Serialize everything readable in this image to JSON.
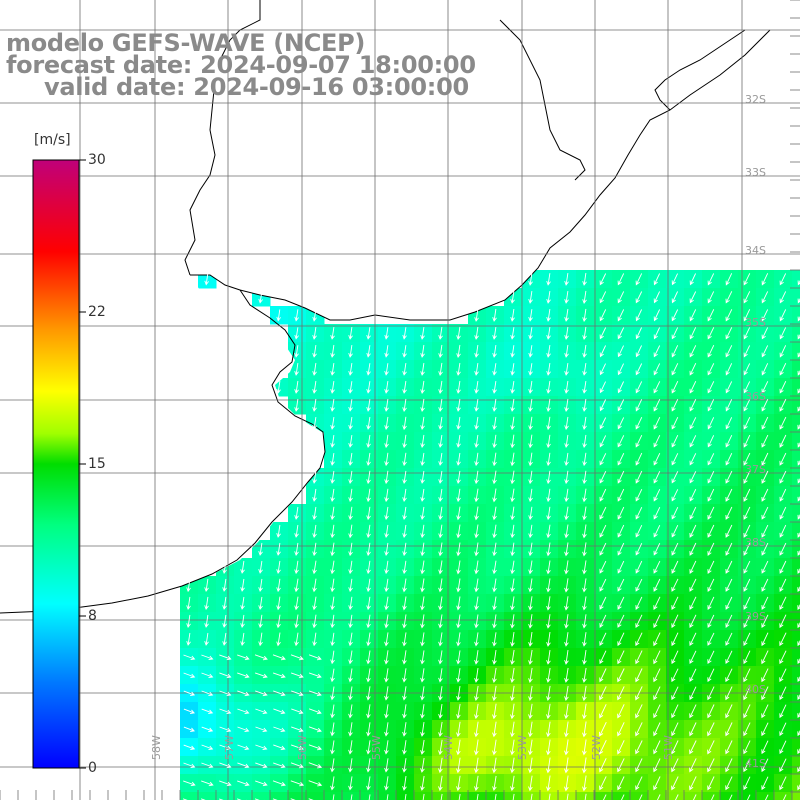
{
  "title": {
    "model": "modelo GEFS-WAVE (NCEP)",
    "forecast_date": "forecast date: 2024-09-07 18:00:00",
    "valid_date": "valid date: 2024-09-16 03:00:00"
  },
  "colorbar": {
    "unit": "[m/s]",
    "ticks": [
      {
        "value": 30,
        "label": "30"
      },
      {
        "value": 22,
        "label": "22"
      },
      {
        "value": 15,
        "label": "15"
      },
      {
        "value": 8,
        "label": "8"
      },
      {
        "value": 0,
        "label": "0"
      }
    ],
    "range": [
      0,
      30
    ],
    "colors": [
      "#0000ff",
      "#00aaff",
      "#00ffff",
      "#00ff00",
      "#ffff00",
      "#ff8000",
      "#ff0000",
      "#c00080"
    ]
  },
  "map": {
    "lat_labels": [
      "32S",
      "33S",
      "34S",
      "35S",
      "36S",
      "37S",
      "38S",
      "39S",
      "40S",
      "41S"
    ],
    "lon_labels": [
      "58W",
      "57W",
      "56W",
      "55W",
      "54W",
      "53W",
      "52W",
      "51W"
    ],
    "land_color": "#ffffff",
    "grid_color": "#6e6e6e",
    "arrow_color": "#ffffff"
  }
}
